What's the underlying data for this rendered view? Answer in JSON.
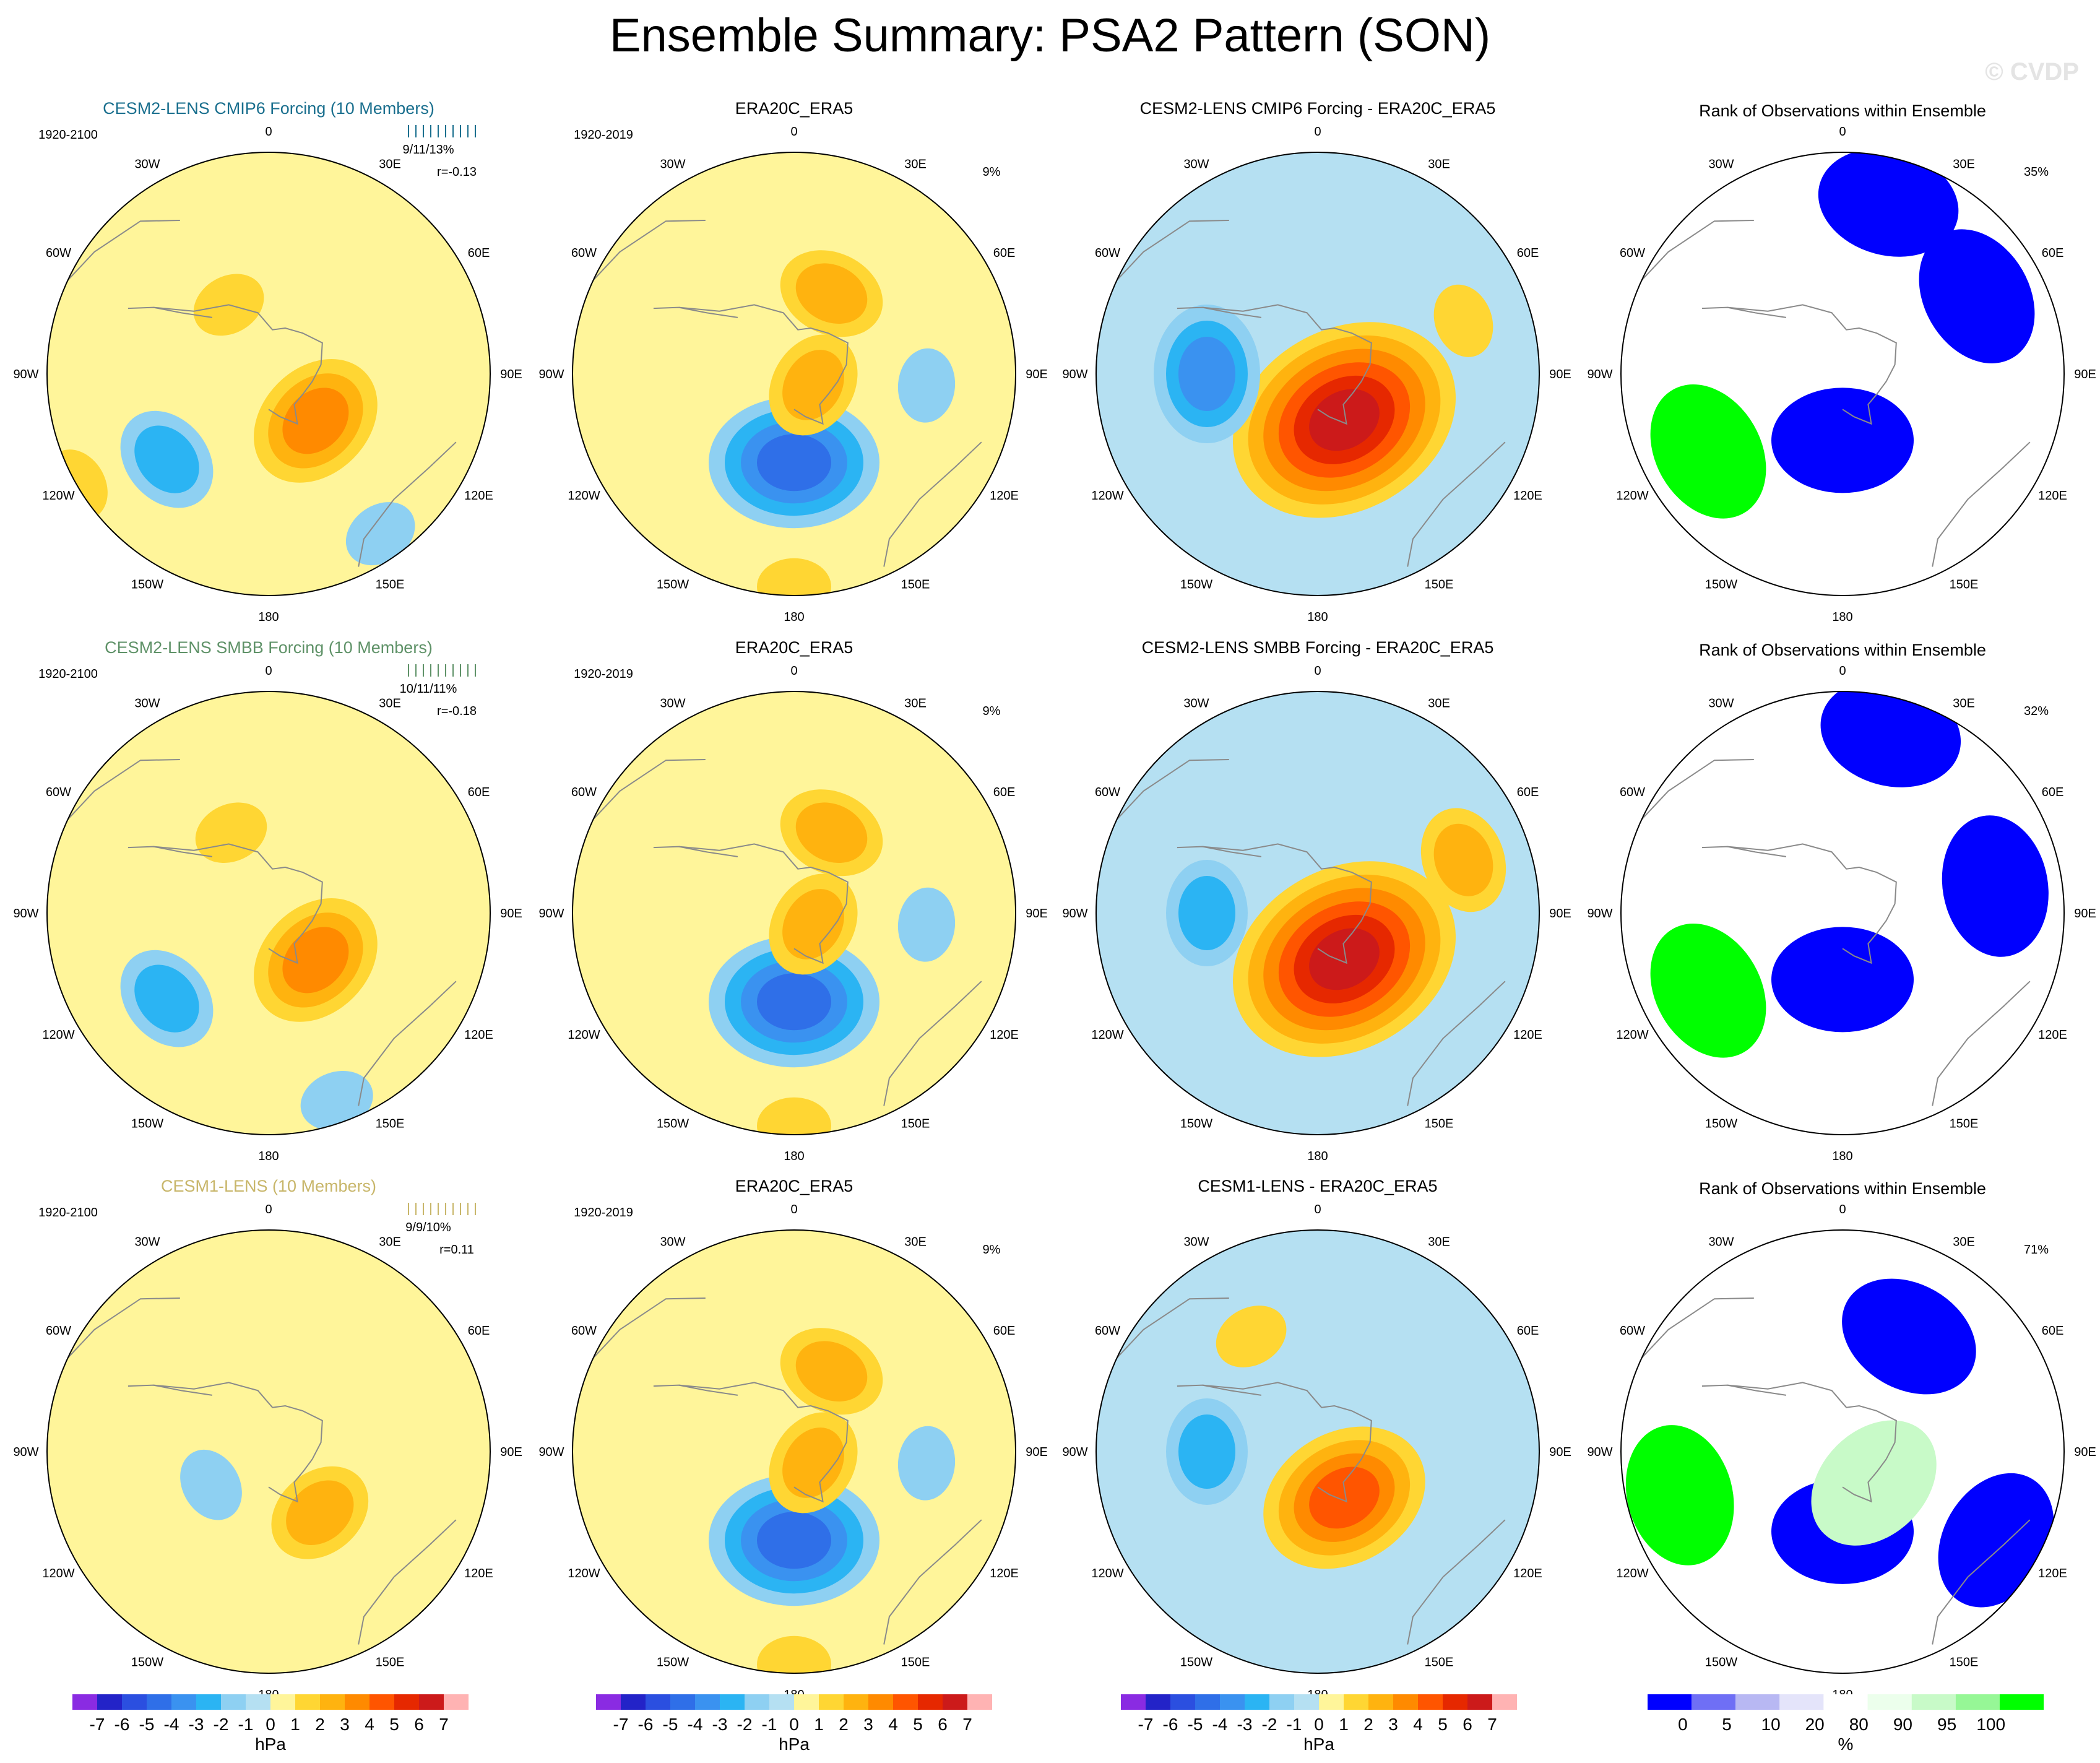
{
  "page": {
    "title": "Ensemble Summary: PSA2 Pattern (SON)",
    "copyright": "© CVDP"
  },
  "colors": {
    "model_cmip6": "#1a6f8e",
    "model_smbb": "#5f9268",
    "model_cesm1": "#c8b66a",
    "land_line": "#8a8a8a",
    "hpa_scale": [
      "#8a2be2",
      "#2323c8",
      "#2b4fe0",
      "#2f6fe8",
      "#3a92f0",
      "#2bb4f3",
      "#8ed0f2",
      "#b5e0f2",
      "#fff59a",
      "#ffd633",
      "#ffb30f",
      "#ff8a00",
      "#ff5500",
      "#e62800",
      "#cc1a1a",
      "#ffb3b3"
    ],
    "rank_scale": [
      "#0000ff",
      "#6f6ff5",
      "#b8b8f3",
      "#e4e4fa",
      "#ffffff",
      "#ecffec",
      "#c8fac8",
      "#96f796",
      "#00ff00"
    ]
  },
  "rows": [
    {
      "model": {
        "name": "CESM2-LENS CMIP6 Forcing (10 Members)",
        "color_key": "model_cmip6",
        "years": "1920-2100",
        "stats": "9/11/13%",
        "corr": "r=-0.13"
      },
      "obs": {
        "title": "ERA20C_ERA5",
        "years": "1920-2019",
        "pct": "9%"
      },
      "diff": {
        "title": "CESM2-LENS CMIP6 Forcing - ERA20C_ERA5"
      },
      "rank": {
        "title": "Rank of Observations within Ensemble",
        "pct": "35%"
      }
    },
    {
      "model": {
        "name": "CESM2-LENS SMBB Forcing (10 Members)",
        "color_key": "model_smbb",
        "years": "1920-2100",
        "stats": "10/11/11%",
        "corr": "r=-0.18"
      },
      "obs": {
        "title": "ERA20C_ERA5",
        "years": "1920-2019",
        "pct": "9%"
      },
      "diff": {
        "title": "CESM2-LENS SMBB Forcing - ERA20C_ERA5"
      },
      "rank": {
        "title": "Rank of Observations within Ensemble",
        "pct": "32%"
      }
    },
    {
      "model": {
        "name": "CESM1-LENS (10 Members)",
        "color_key": "model_cesm1",
        "years": "1920-2100",
        "stats": "9/9/10%",
        "corr": "r=0.11"
      },
      "obs": {
        "title": "ERA20C_ERA5",
        "years": "1920-2019",
        "pct": "9%"
      },
      "diff": {
        "title": "CESM1-LENS - ERA20C_ERA5"
      },
      "rank": {
        "title": "Rank of Observations within Ensemble",
        "pct": "71%"
      }
    }
  ],
  "lon_labels": [
    "0",
    "30E",
    "60E",
    "90E",
    "120E",
    "150E",
    "180",
    "150W",
    "120W",
    "90W",
    "60W",
    "30W"
  ],
  "chart_data": {
    "type": "heatmap",
    "description_units": "hPa anomaly regression (panels 1-3) and rank percentile (panel 4)",
    "hpa_colorbar": {
      "unit": "hPa",
      "ticks": [
        "-7",
        "-6",
        "-5",
        "-4",
        "-3",
        "-2",
        "-1",
        "0",
        "1",
        "2",
        "3",
        "4",
        "5",
        "6",
        "7"
      ]
    },
    "rank_colorbar": {
      "unit": "%",
      "ticks": [
        "0",
        "5",
        "10",
        "20",
        "80",
        "90",
        "95",
        "100"
      ]
    },
    "features_hpa": {
      "model_row1": [
        {
          "lon": 135,
          "colat": 15,
          "value": 3
        },
        {
          "lon": 230,
          "colat": 30,
          "value": -1.5
        },
        {
          "lon": 145,
          "colat": 44,
          "value": -1
        },
        {
          "lon": 330,
          "colat": 18,
          "value": 1
        },
        {
          "lon": 240,
          "colat": 50,
          "value": 0.5
        }
      ],
      "model_row2": [
        {
          "lon": 135,
          "colat": 15,
          "value": 3
        },
        {
          "lon": 230,
          "colat": 30,
          "value": -1.5
        },
        {
          "lon": 160,
          "colat": 45,
          "value": -1
        },
        {
          "lon": 335,
          "colat": 20,
          "value": 1
        }
      ],
      "model_row3": [
        {
          "lon": 140,
          "colat": 18,
          "value": 1.5
        },
        {
          "lon": 240,
          "colat": 15,
          "value": -0.5
        }
      ],
      "obs": [
        {
          "lon": 180,
          "colat": 20,
          "value": -3.5
        },
        {
          "lon": 120,
          "colat": 5,
          "value": 1.5
        },
        {
          "lon": 25,
          "colat": 20,
          "value": 1.5
        },
        {
          "lon": 95,
          "colat": 30,
          "value": -1
        },
        {
          "lon": 180,
          "colat": 48,
          "value": 0.5
        }
      ],
      "diff_row1": [
        {
          "lon": 150,
          "colat": 12,
          "value": 6
        },
        {
          "lon": 270,
          "colat": 25,
          "value": -2.5
        },
        {
          "lon": 70,
          "colat": 35,
          "value": 1
        }
      ],
      "diff_row2": [
        {
          "lon": 150,
          "colat": 12,
          "value": 5.5
        },
        {
          "lon": 270,
          "colat": 25,
          "value": -2
        },
        {
          "lon": 70,
          "colat": 35,
          "value": 1.5
        }
      ],
      "diff_row3": [
        {
          "lon": 150,
          "colat": 12,
          "value": 3.5
        },
        {
          "lon": 270,
          "colat": 25,
          "value": -1.5
        },
        {
          "lon": 330,
          "colat": 30,
          "value": 1
        }
      ]
    },
    "features_rank": [
      [
        {
          "lon": 180,
          "colat": 15,
          "value": 0
        },
        {
          "lon": 240,
          "colat": 35,
          "value": 100
        },
        {
          "lon": 60,
          "colat": 35,
          "value": 0
        },
        {
          "lon": 15,
          "colat": 40,
          "value": 0
        }
      ],
      [
        {
          "lon": 180,
          "colat": 15,
          "value": 0
        },
        {
          "lon": 240,
          "colat": 35,
          "value": 100
        },
        {
          "lon": 80,
          "colat": 35,
          "value": 0
        },
        {
          "lon": 15,
          "colat": 42,
          "value": 0
        }
      ],
      [
        {
          "lon": 180,
          "colat": 18,
          "value": 0
        },
        {
          "lon": 255,
          "colat": 38,
          "value": 100
        },
        {
          "lon": 135,
          "colat": 10,
          "value": 90
        },
        {
          "lon": 120,
          "colat": 40,
          "value": 0
        },
        {
          "lon": 30,
          "colat": 30,
          "value": 0
        }
      ]
    ]
  }
}
